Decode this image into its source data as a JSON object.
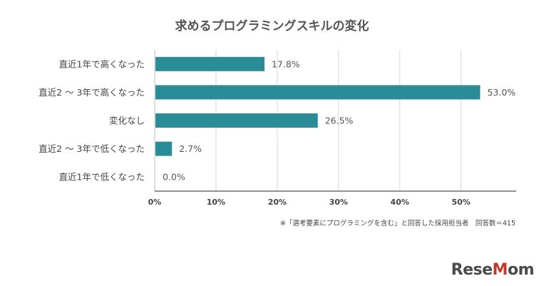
{
  "chart_data": {
    "type": "bar",
    "orientation": "horizontal",
    "title": "求めるプログラミングスキルの変化",
    "categories": [
      "直近1年で高くなった",
      "直近2 ～ 3年で高くなった",
      "変化なし",
      "直近2 ～ 3年で低くなった",
      "直近1年で低くなった"
    ],
    "values": [
      17.8,
      53.0,
      26.5,
      2.7,
      0.0
    ],
    "value_labels": [
      "17.8%",
      "53.0%",
      "26.5%",
      "2.7%",
      "0.0%"
    ],
    "xlim": [
      0,
      59
    ],
    "x_ticks": [
      0,
      10,
      20,
      30,
      40,
      50
    ],
    "x_tick_labels": [
      "0%",
      "10%",
      "20%",
      "30%",
      "40%",
      "50%"
    ],
    "grid": true,
    "bar_color": "#2a8c96",
    "note": "※「選考要素にプログラミングを含む」と回答した採用担当者　回答数＝415"
  },
  "brand": {
    "logo": "ReseMom"
  }
}
